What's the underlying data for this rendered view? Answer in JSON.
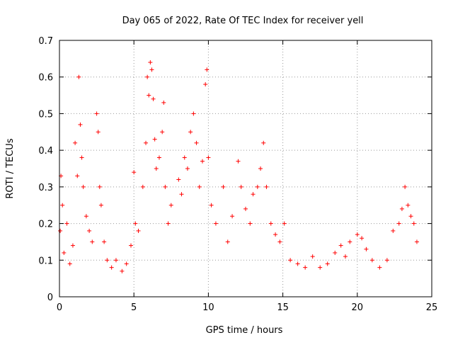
{
  "chart_data": {
    "type": "scatter",
    "title": "Day 065 of 2022, Rate Of TEC Index for receiver yell",
    "xlabel": "GPS time / hours",
    "ylabel": "ROTI / TECUs",
    "xlim": [
      0,
      25
    ],
    "ylim": [
      0,
      0.7
    ],
    "xticks": [
      "0",
      "5",
      "10",
      "15",
      "20",
      "25"
    ],
    "yticks": [
      "0",
      "0.1",
      "0.2",
      "0.3",
      "0.4",
      "0.5",
      "0.6",
      "0.7"
    ],
    "grid": true,
    "marker": "+",
    "color": "#ff0000",
    "series": [
      {
        "points": [
          [
            0.05,
            0.18
          ],
          [
            0.1,
            0.33
          ],
          [
            0.2,
            0.25
          ],
          [
            0.3,
            0.12
          ],
          [
            0.5,
            0.2
          ],
          [
            0.7,
            0.09
          ],
          [
            0.9,
            0.14
          ],
          [
            1.05,
            0.42
          ],
          [
            1.2,
            0.33
          ],
          [
            1.3,
            0.6
          ],
          [
            1.4,
            0.47
          ],
          [
            1.5,
            0.38
          ],
          [
            1.6,
            0.3
          ],
          [
            1.8,
            0.22
          ],
          [
            2.0,
            0.18
          ],
          [
            2.2,
            0.15
          ],
          [
            2.5,
            0.5
          ],
          [
            2.6,
            0.45
          ],
          [
            2.7,
            0.3
          ],
          [
            2.8,
            0.25
          ],
          [
            3.0,
            0.15
          ],
          [
            3.2,
            0.1
          ],
          [
            3.5,
            0.08
          ],
          [
            3.8,
            0.1
          ],
          [
            4.2,
            0.07
          ],
          [
            4.5,
            0.09
          ],
          [
            4.8,
            0.14
          ],
          [
            5.0,
            0.34
          ],
          [
            5.1,
            0.2
          ],
          [
            5.3,
            0.18
          ],
          [
            5.6,
            0.3
          ],
          [
            5.8,
            0.42
          ],
          [
            5.9,
            0.6
          ],
          [
            6.0,
            0.55
          ],
          [
            6.1,
            0.64
          ],
          [
            6.2,
            0.62
          ],
          [
            6.3,
            0.54
          ],
          [
            6.4,
            0.43
          ],
          [
            6.5,
            0.35
          ],
          [
            6.7,
            0.38
          ],
          [
            6.9,
            0.45
          ],
          [
            7.0,
            0.53
          ],
          [
            7.1,
            0.3
          ],
          [
            7.3,
            0.2
          ],
          [
            7.5,
            0.25
          ],
          [
            8.0,
            0.32
          ],
          [
            8.2,
            0.28
          ],
          [
            8.4,
            0.38
          ],
          [
            8.6,
            0.35
          ],
          [
            8.8,
            0.45
          ],
          [
            9.0,
            0.5
          ],
          [
            9.2,
            0.42
          ],
          [
            9.4,
            0.3
          ],
          [
            9.6,
            0.37
          ],
          [
            9.8,
            0.58
          ],
          [
            9.9,
            0.62
          ],
          [
            10.0,
            0.38
          ],
          [
            10.2,
            0.25
          ],
          [
            10.5,
            0.2
          ],
          [
            11.0,
            0.3
          ],
          [
            11.3,
            0.15
          ],
          [
            11.6,
            0.22
          ],
          [
            12.0,
            0.37
          ],
          [
            12.2,
            0.3
          ],
          [
            12.5,
            0.24
          ],
          [
            12.8,
            0.2
          ],
          [
            13.0,
            0.28
          ],
          [
            13.3,
            0.3
          ],
          [
            13.5,
            0.35
          ],
          [
            13.7,
            0.42
          ],
          [
            13.9,
            0.3
          ],
          [
            14.2,
            0.2
          ],
          [
            14.5,
            0.17
          ],
          [
            14.8,
            0.15
          ],
          [
            15.1,
            0.2
          ],
          [
            15.5,
            0.1
          ],
          [
            16.0,
            0.09
          ],
          [
            16.5,
            0.08
          ],
          [
            17.0,
            0.11
          ],
          [
            17.5,
            0.08
          ],
          [
            18.0,
            0.09
          ],
          [
            18.5,
            0.12
          ],
          [
            18.9,
            0.14
          ],
          [
            19.2,
            0.11
          ],
          [
            19.5,
            0.15
          ],
          [
            20.0,
            0.17
          ],
          [
            20.3,
            0.16
          ],
          [
            20.6,
            0.13
          ],
          [
            21.0,
            0.1
          ],
          [
            21.5,
            0.08
          ],
          [
            22.0,
            0.1
          ],
          [
            22.4,
            0.18
          ],
          [
            22.8,
            0.2
          ],
          [
            23.0,
            0.24
          ],
          [
            23.2,
            0.3
          ],
          [
            23.4,
            0.25
          ],
          [
            23.6,
            0.22
          ],
          [
            23.8,
            0.2
          ],
          [
            24.0,
            0.15
          ]
        ]
      }
    ]
  }
}
